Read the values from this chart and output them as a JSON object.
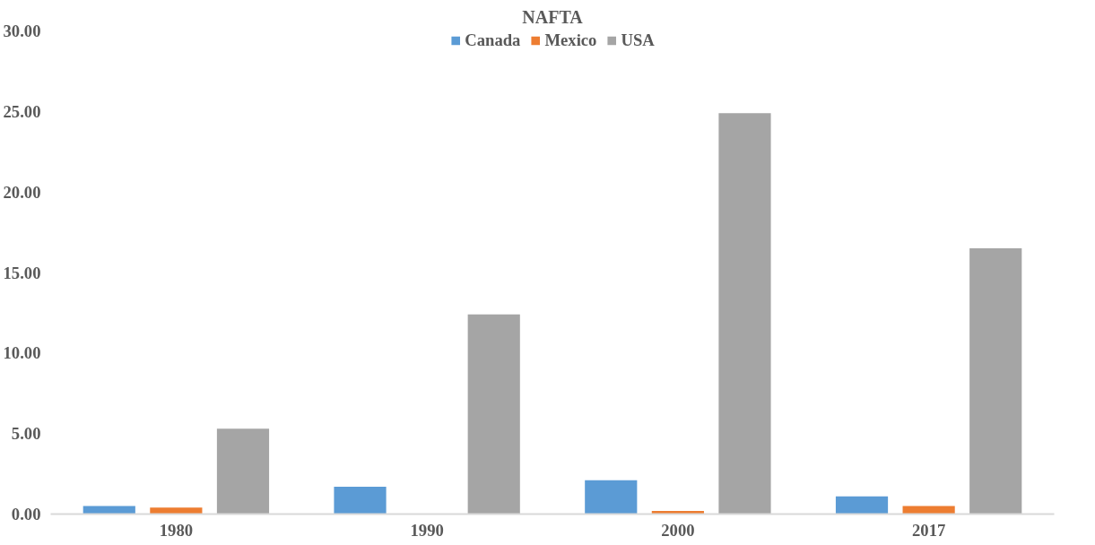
{
  "chart_data": {
    "type": "bar",
    "title": "NAFTA",
    "categories": [
      "1980",
      "1990",
      "2000",
      "2017"
    ],
    "series": [
      {
        "name": "Canada",
        "color": "#5b9bd5",
        "values": [
          0.5,
          1.7,
          2.1,
          1.1
        ]
      },
      {
        "name": "Mexico",
        "color": "#ed7d31",
        "values": [
          0.4,
          0,
          0.2,
          0.5
        ]
      },
      {
        "name": "USA",
        "color": "#a5a5a5",
        "values": [
          5.3,
          12.4,
          24.9,
          16.5
        ]
      }
    ],
    "ylim": [
      0,
      30
    ],
    "yticks": [
      {
        "value": 0,
        "label": "0.00"
      },
      {
        "value": 5,
        "label": "5.00"
      },
      {
        "value": 10,
        "label": "10.00"
      },
      {
        "value": 15,
        "label": "15.00"
      },
      {
        "value": 20,
        "label": "20.00"
      },
      {
        "value": 25,
        "label": "25.00"
      },
      {
        "value": 30,
        "label": "30.00"
      }
    ],
    "grid": false,
    "legend": "top"
  }
}
